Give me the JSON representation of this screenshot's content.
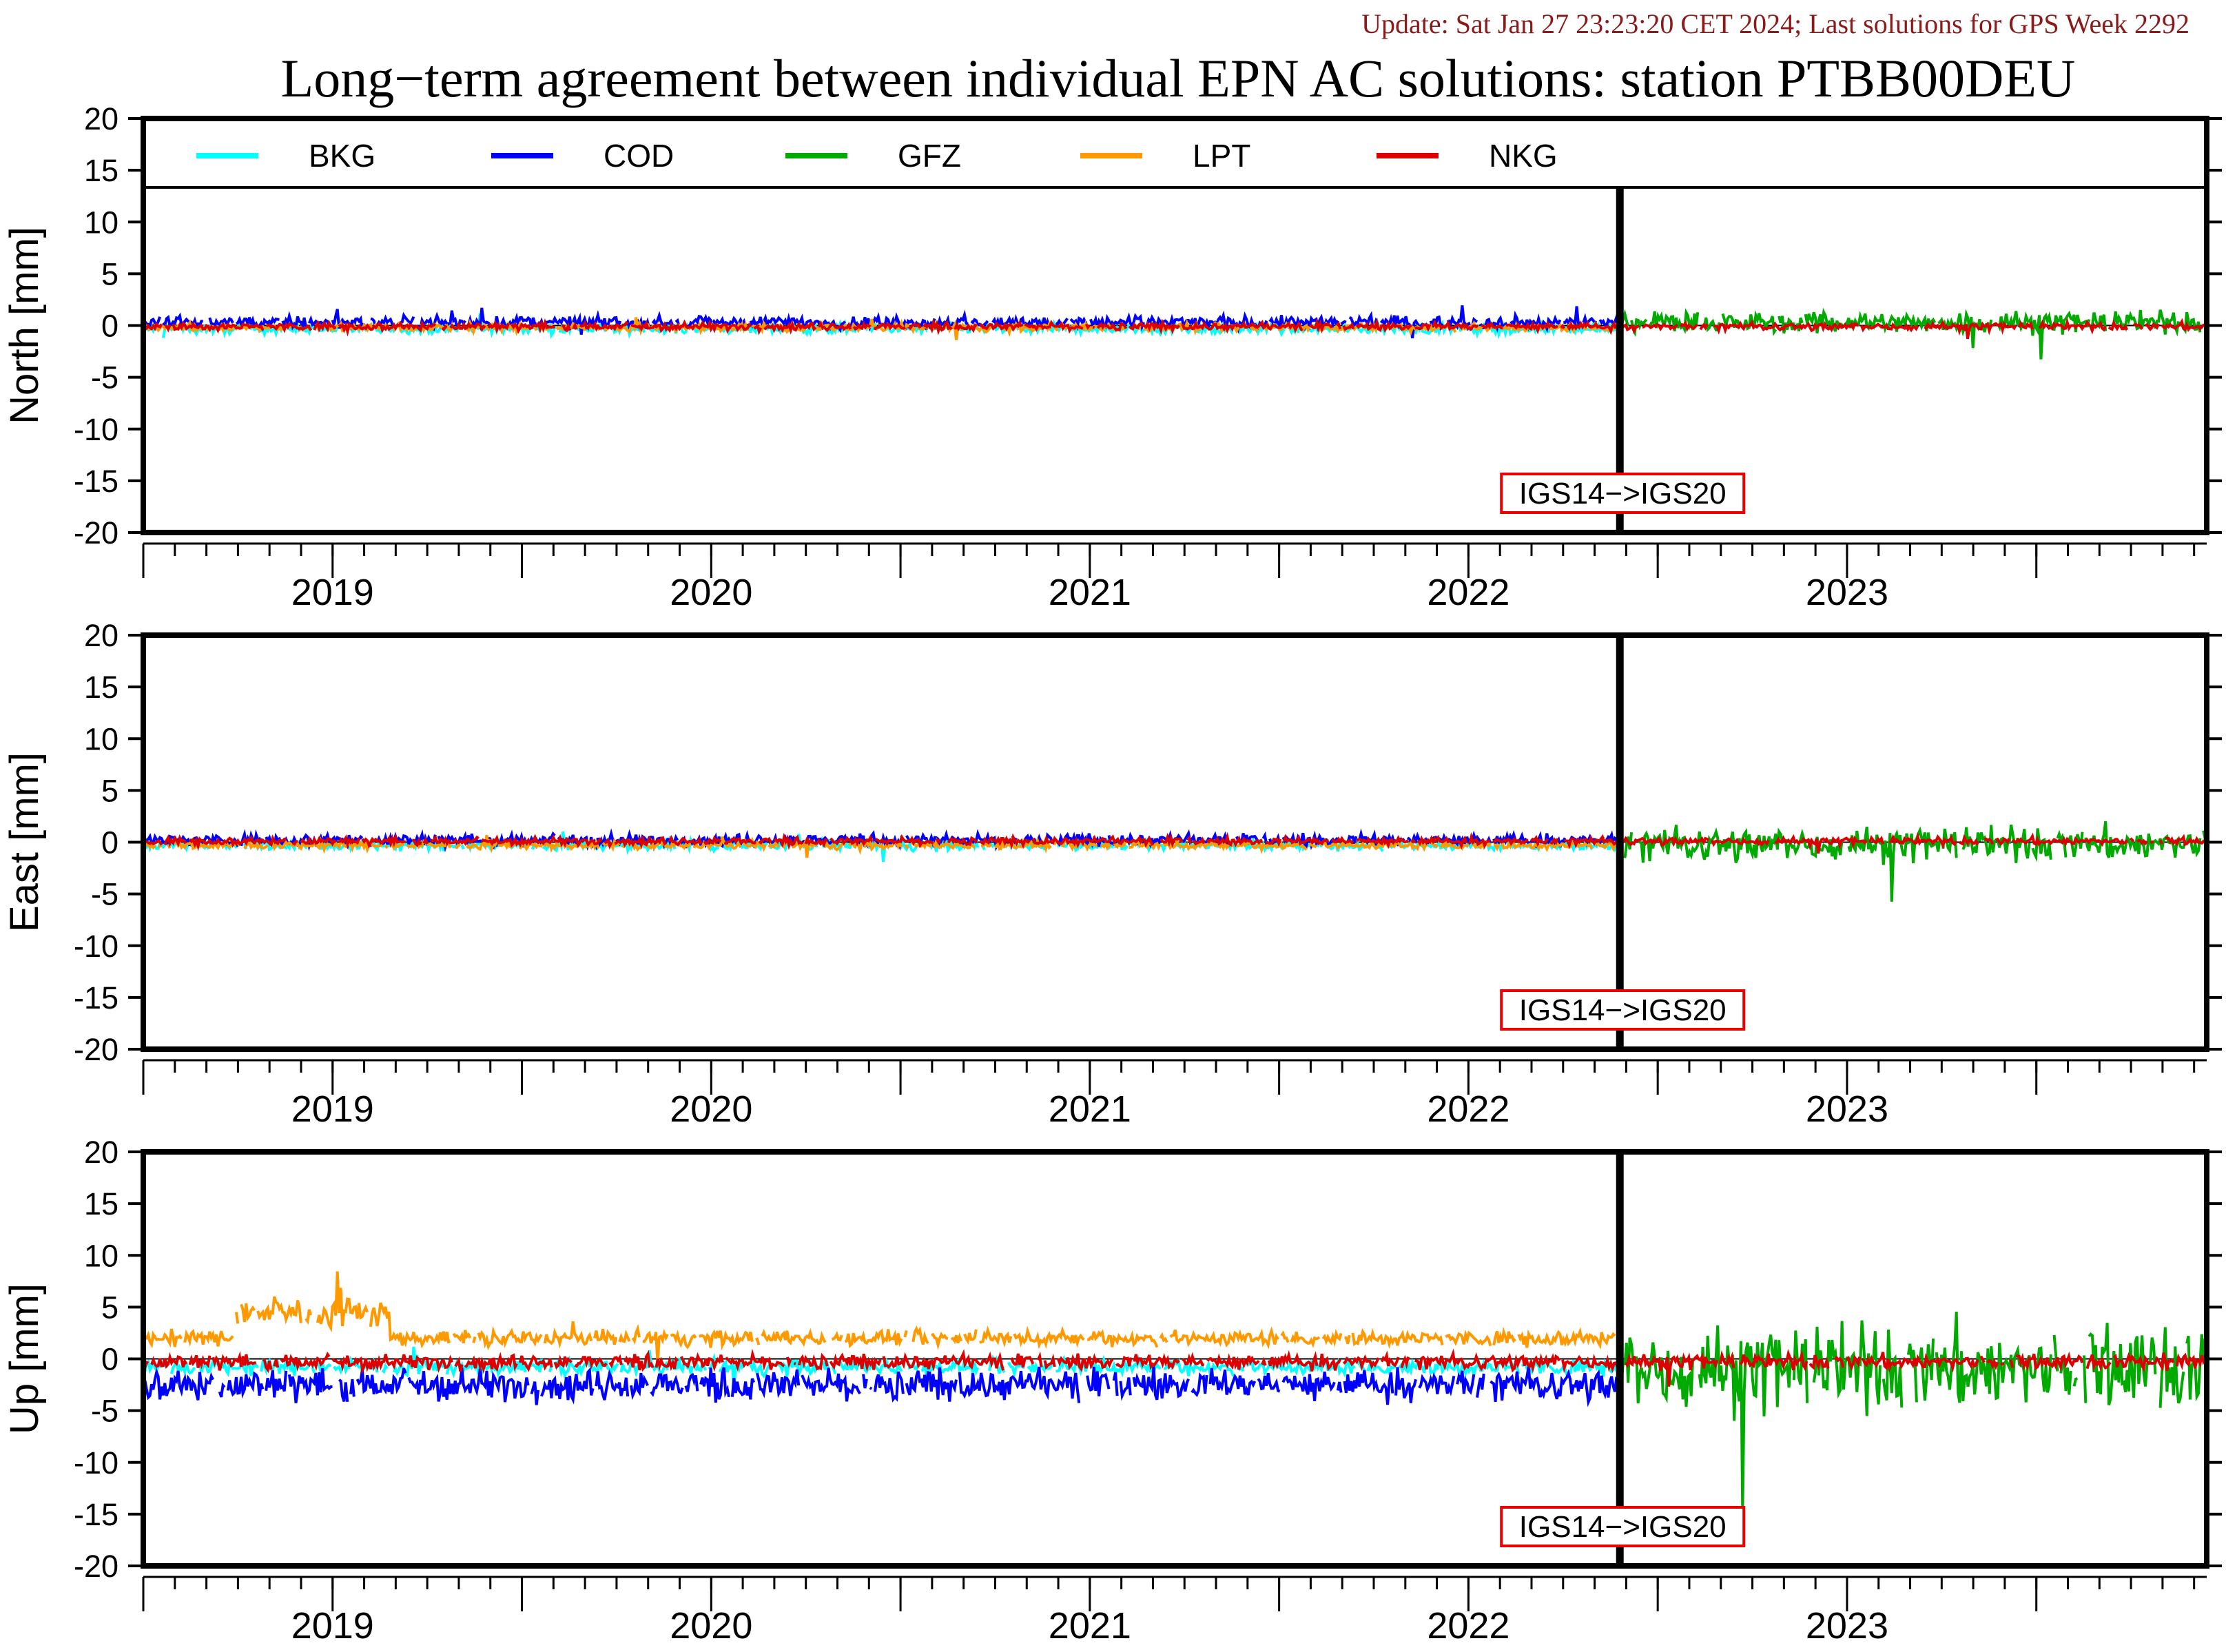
{
  "header": {
    "update": "Update: Sat Jan 27 23:23:20 CET 2024; Last solutions for GPS Week 2292",
    "title": "Long−term agreement between individual EPN AC solutions: station PTBB00DEU"
  },
  "colors": {
    "update_text": "#8b1a1a",
    "BKG": "#00ffff",
    "COD": "#0000ff",
    "GFZ": "#00aa00",
    "LPT": "#ff9900",
    "NKG": "#dd0000",
    "annotation_border": "#ee0000",
    "axes": "#000000"
  },
  "chart_data": [
    {
      "type": "line",
      "panel": "north",
      "ylabel": "North [mm]",
      "ylim": [
        -20,
        20
      ],
      "yticks": [
        -20,
        -15,
        -10,
        -5,
        0,
        5,
        10,
        15,
        20
      ],
      "xlim": [
        2018.5,
        2023.95
      ],
      "xtick_labels": [
        "2019",
        "2020",
        "2021",
        "2022",
        "2023"
      ],
      "legend": [
        "BKG",
        "COD",
        "GFZ",
        "LPT",
        "NKG"
      ],
      "legend_position": "top",
      "frame_change": {
        "x": 2022.4,
        "label": "IGS14−>IGS20"
      },
      "series": [
        {
          "name": "BKG",
          "x_range": [
            2018.5,
            2022.4
          ],
          "mean": -0.3,
          "amp": 0.4
        },
        {
          "name": "COD",
          "x_range": [
            2018.5,
            2022.4
          ],
          "mean": 0.3,
          "amp": 0.5
        },
        {
          "name": "GFZ",
          "x_range": [
            2022.4,
            2023.95
          ],
          "mean": 0.3,
          "amp": 0.9
        },
        {
          "name": "LPT",
          "x_range": [
            2018.5,
            2022.4
          ],
          "mean": -0.2,
          "amp": 0.3
        },
        {
          "name": "NKG",
          "x_range": [
            2018.5,
            2023.95
          ],
          "mean": -0.1,
          "amp": 0.3
        }
      ]
    },
    {
      "type": "line",
      "panel": "east",
      "ylabel": "East [mm]",
      "ylim": [
        -20,
        20
      ],
      "yticks": [
        -20,
        -15,
        -10,
        -5,
        0,
        5,
        10,
        15,
        20
      ],
      "xlim": [
        2018.5,
        2023.95
      ],
      "xtick_labels": [
        "2019",
        "2020",
        "2021",
        "2022",
        "2023"
      ],
      "frame_change": {
        "x": 2022.4,
        "label": "IGS14−>IGS20"
      },
      "series": [
        {
          "name": "BKG",
          "x_range": [
            2018.5,
            2022.4
          ],
          "mean": -0.3,
          "amp": 0.4
        },
        {
          "name": "COD",
          "x_range": [
            2018.5,
            2022.4
          ],
          "mean": 0.2,
          "amp": 0.5
        },
        {
          "name": "GFZ",
          "x_range": [
            2022.4,
            2023.95
          ],
          "mean": -0.2,
          "amp": 1.4
        },
        {
          "name": "LPT",
          "x_range": [
            2018.5,
            2022.4
          ],
          "mean": -0.3,
          "amp": 0.3
        },
        {
          "name": "NKG",
          "x_range": [
            2018.5,
            2023.95
          ],
          "mean": 0.1,
          "amp": 0.3
        }
      ]
    },
    {
      "type": "line",
      "panel": "up",
      "ylabel": "Up [mm]",
      "ylim": [
        -20,
        20
      ],
      "yticks": [
        -20,
        -15,
        -10,
        -5,
        0,
        5,
        10,
        15,
        20
      ],
      "xlim": [
        2018.5,
        2023.95
      ],
      "xtick_labels": [
        "2019",
        "2020",
        "2021",
        "2022",
        "2023"
      ],
      "frame_change": {
        "x": 2022.4,
        "label": "IGS14−>IGS20"
      },
      "series": [
        {
          "name": "BKG",
          "x_range": [
            2018.5,
            2022.4
          ],
          "mean": -0.8,
          "amp": 0.6
        },
        {
          "name": "COD",
          "x_range": [
            2018.5,
            2022.4
          ],
          "mean": -2.5,
          "amp": 1.3
        },
        {
          "name": "GFZ",
          "x_range": [
            2022.4,
            2023.95
          ],
          "mean": -1.0,
          "amp": 3.5
        },
        {
          "name": "LPT",
          "x_range": [
            2018.5,
            2022.4
          ],
          "mean": 2.0,
          "amp": 0.6,
          "segments": [
            {
              "x": [
                2018.74,
                2019.15
              ],
              "mean": 4.5,
              "amp": 1.2
            }
          ]
        },
        {
          "name": "NKG",
          "x_range": [
            2018.5,
            2023.95
          ],
          "mean": -0.3,
          "amp": 0.6
        }
      ]
    }
  ]
}
